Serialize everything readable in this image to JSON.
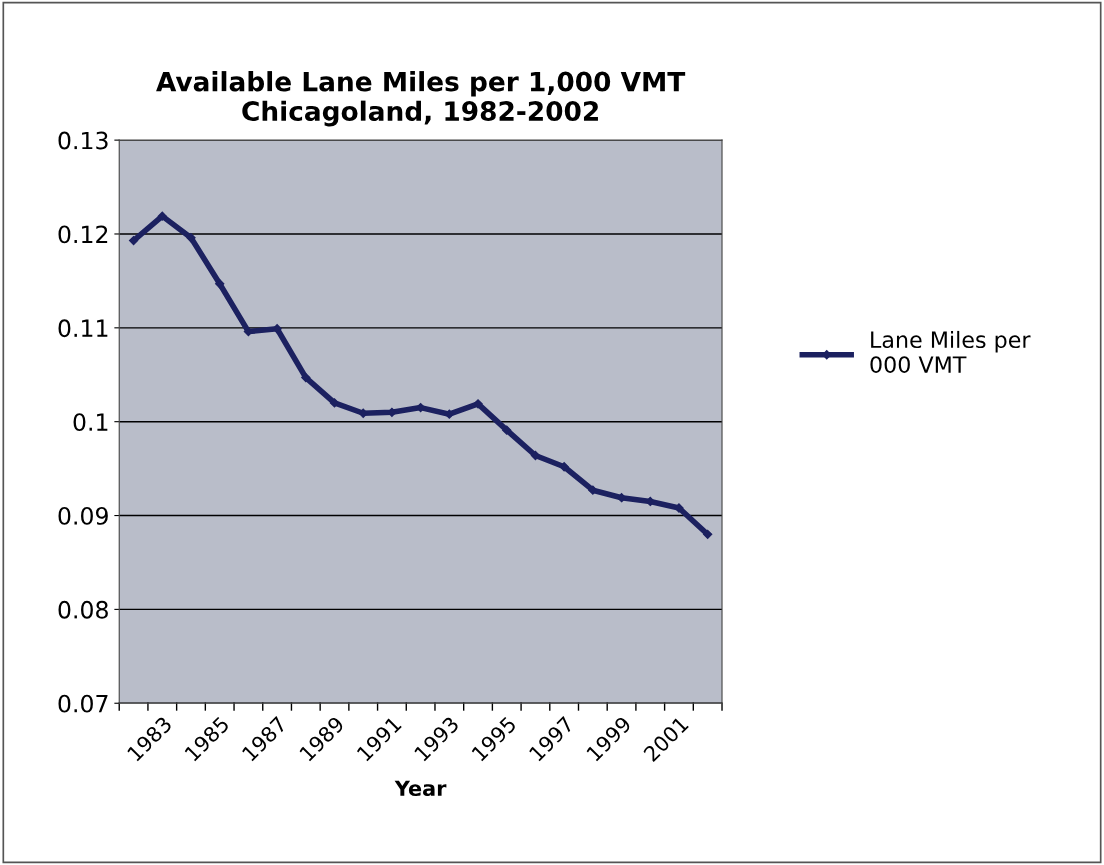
{
  "chart_data": {
    "type": "line",
    "title": "Available Lane Miles per 1,000 VMT\nChicagoland, 1982-2002",
    "xlabel": "Year",
    "categories": [
      null,
      "1983",
      null,
      "1985",
      null,
      "1987",
      null,
      "1989",
      null,
      "1991",
      null,
      "1993",
      null,
      "1995",
      null,
      "1997",
      null,
      "1999",
      null,
      "2001",
      null
    ],
    "series": [
      {
        "name": "Lane Miles per\n000 VMT",
        "color": "#1c2160",
        "values": [
          0.1193,
          0.1219,
          0.1196,
          0.1147,
          0.1096,
          0.1099,
          0.1047,
          0.102,
          0.1009,
          0.101,
          0.1015,
          0.1008,
          0.1019,
          0.0991,
          0.0964,
          0.0952,
          0.0927,
          0.0919,
          0.0915,
          0.0908,
          0.088
        ]
      }
    ],
    "ylim": [
      0.07,
      0.13
    ],
    "yticks": [
      0.07,
      0.08,
      0.09,
      0.1,
      0.11,
      0.12,
      0.13
    ],
    "grid": "y",
    "legend": "right",
    "marker": "diamond",
    "line_style": "solid"
  }
}
